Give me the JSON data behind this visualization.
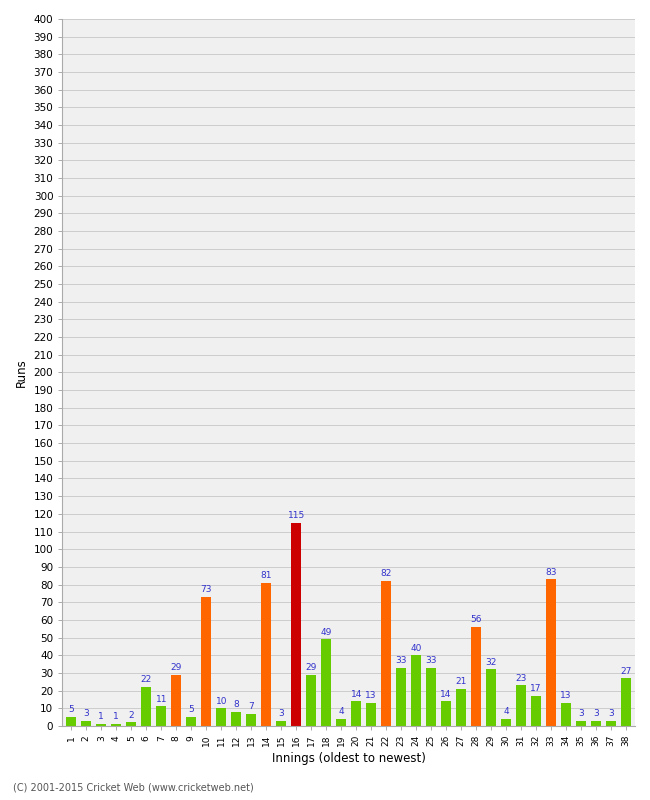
{
  "innings": [
    1,
    2,
    3,
    4,
    5,
    6,
    7,
    8,
    9,
    10,
    11,
    12,
    13,
    14,
    15,
    16,
    17,
    18,
    19,
    20,
    21,
    22,
    23,
    24,
    25,
    26,
    27,
    28,
    29,
    30,
    31,
    32,
    33,
    34,
    35,
    36,
    37,
    38
  ],
  "values": [
    5,
    3,
    1,
    1,
    2,
    22,
    11,
    29,
    5,
    73,
    10,
    8,
    7,
    81,
    3,
    115,
    29,
    49,
    4,
    14,
    13,
    82,
    33,
    40,
    33,
    14,
    21,
    56,
    32,
    4,
    23,
    17,
    83,
    13,
    3,
    3,
    3,
    27
  ],
  "colors": [
    "#66cc00",
    "#66cc00",
    "#66cc00",
    "#66cc00",
    "#66cc00",
    "#66cc00",
    "#66cc00",
    "#ff6600",
    "#66cc00",
    "#ff6600",
    "#66cc00",
    "#66cc00",
    "#66cc00",
    "#ff6600",
    "#66cc00",
    "#cc0000",
    "#66cc00",
    "#66cc00",
    "#66cc00",
    "#66cc00",
    "#66cc00",
    "#ff6600",
    "#66cc00",
    "#66cc00",
    "#66cc00",
    "#66cc00",
    "#66cc00",
    "#ff6600",
    "#66cc00",
    "#66cc00",
    "#66cc00",
    "#66cc00",
    "#ff6600",
    "#66cc00",
    "#66cc00",
    "#66cc00",
    "#66cc00",
    "#66cc00"
  ],
  "xlabel": "Innings (oldest to newest)",
  "ylabel": "Runs",
  "ylim": [
    0,
    400
  ],
  "ytick_step": 10,
  "bg_color": "#ffffff",
  "plot_bg_color": "#f0f0f0",
  "grid_color": "#cccccc",
  "label_color": "#3333cc",
  "copyright": "(C) 2001-2015 Cricket Web (www.cricketweb.net)"
}
